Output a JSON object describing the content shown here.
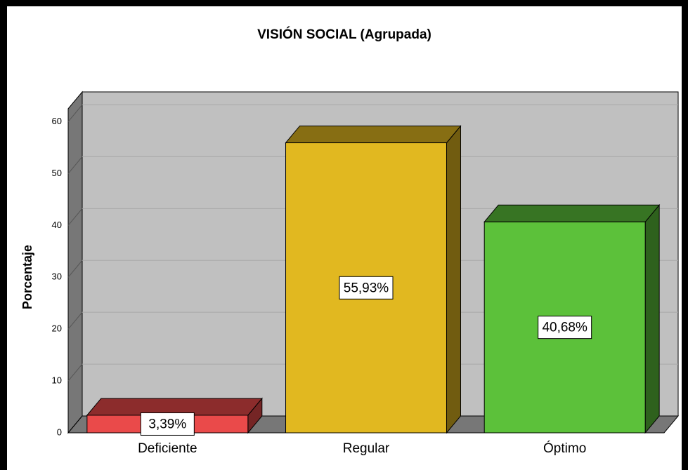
{
  "chart_data": {
    "type": "bar3d",
    "title": "VISIÓN SOCIAL (Agrupada)",
    "y_label": "Porcentaje",
    "categories": [
      "Deficiente",
      "Regular",
      "Óptimo"
    ],
    "values": [
      3.39,
      55.93,
      40.68
    ],
    "value_labels": [
      "3,39%",
      "55,93%",
      "40,68%"
    ],
    "colors": [
      "#ea4a4a",
      "#e1b820",
      "#5cc13a"
    ],
    "ylim": [
      0,
      62.5
    ],
    "yticks": [
      0,
      10,
      20,
      30,
      40,
      50,
      60
    ],
    "grid": true
  }
}
